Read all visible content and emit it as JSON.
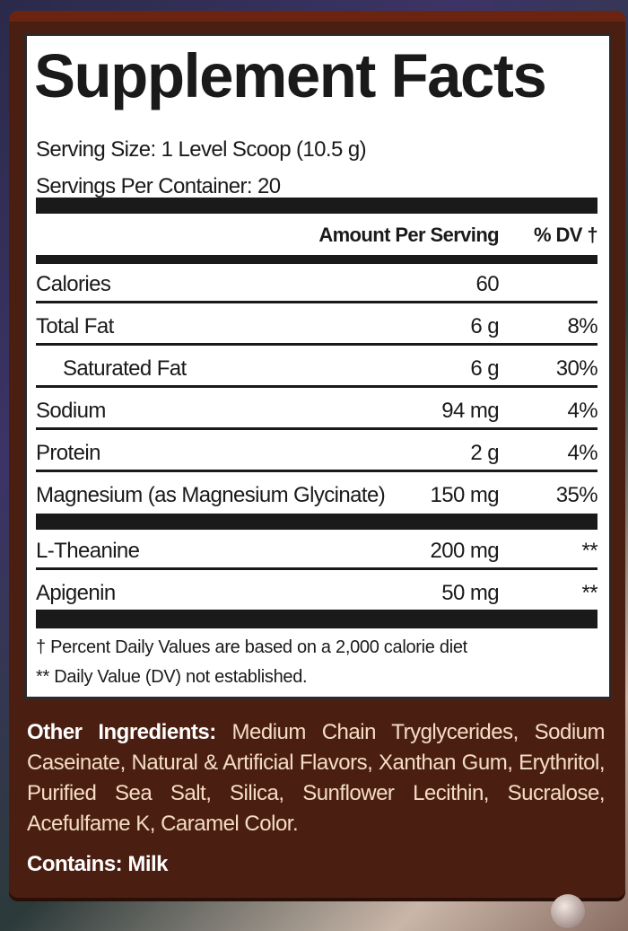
{
  "title": "Supplement Facts",
  "serving_size": "Serving Size: 1 Level Scoop (10.5 g)",
  "servings_per_container": "Servings Per Container: 20",
  "header": {
    "amount": "Amount Per Serving",
    "dv": "% DV †"
  },
  "rows": [
    {
      "name": "Calories",
      "amount": "60",
      "dv": ""
    },
    {
      "name": "Total Fat",
      "amount": "6 g",
      "dv": "8%"
    },
    {
      "name": "Saturated Fat",
      "amount": "6 g",
      "dv": "30%"
    },
    {
      "name": "Sodium",
      "amount": "94 mg",
      "dv": "4%"
    },
    {
      "name": "Protein",
      "amount": "2 g",
      "dv": "4%"
    },
    {
      "name": "Magnesium (as Magnesium Glycinate)",
      "amount": "150 mg",
      "dv": "35%"
    }
  ],
  "other_rows": [
    {
      "name": "L-Theanine",
      "amount": "200 mg",
      "dv": "**"
    },
    {
      "name": "Apigenin",
      "amount": "50 mg",
      "dv": "**"
    }
  ],
  "footnotes": [
    "† Percent Daily Values are based on a 2,000 calorie diet",
    "** Daily Value (DV) not established."
  ],
  "ingredients": {
    "label": "Other Ingredients:",
    "text": " Medium Chain Tryglycerides, Sodium Caseinate, Natural & Artificial Flavors, Xanthan Gum, Erythritol, Purified Sea Salt, Silica, Sunflower Lecithin, Sucralose, Acefulfame K, Caramel Color."
  },
  "contains": "Contains: Milk",
  "colors": {
    "card": "#4a1f12",
    "card_top": "#6b2410",
    "ingredients_text": "#f5dcc4"
  }
}
